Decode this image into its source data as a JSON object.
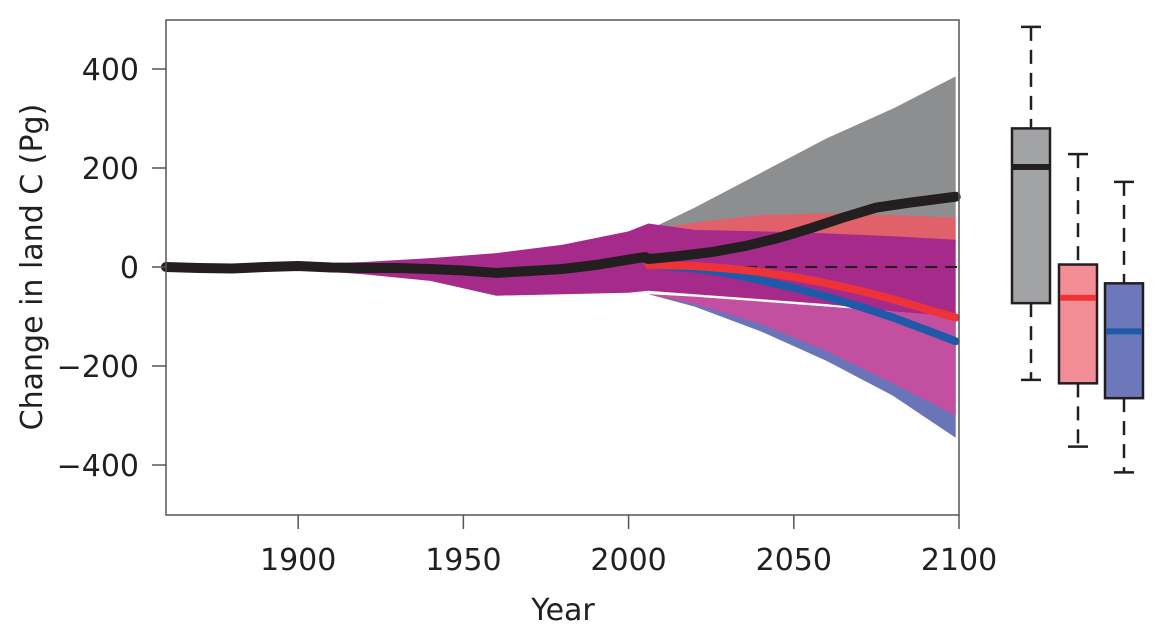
{
  "chart_data": {
    "type": "line",
    "title": "",
    "xlabel": "Year",
    "ylabel": "Change in land C (Pg)",
    "xlim": [
      1860,
      2100
    ],
    "ylim": [
      -500,
      500
    ],
    "xticks": [
      1900,
      1950,
      2000,
      2050,
      2100
    ],
    "yticks": [
      400,
      200,
      0,
      -200,
      -400
    ],
    "ytick_labels": [
      "400",
      "200",
      "0",
      "−200",
      "−400"
    ],
    "zero_line": {
      "y": 0,
      "style": "dashed",
      "color": "#231f20"
    },
    "bands": [
      {
        "name": "grey-range",
        "color": "#8c8e90",
        "x": [
          2006,
          2020,
          2040,
          2060,
          2080,
          2099
        ],
        "upper": [
          75,
          120,
          190,
          260,
          320,
          385
        ],
        "lower": [
          75,
          80,
          85,
          90,
          95,
          100
        ]
      },
      {
        "name": "red-range",
        "color": "#e0616a",
        "x": [
          2006,
          2020,
          2040,
          2060,
          2080,
          2099
        ],
        "upper": [
          75,
          90,
          105,
          108,
          105,
          100
        ],
        "lower": [
          75,
          75,
          70,
          60,
          55,
          50
        ]
      },
      {
        "name": "blue-range",
        "color": "#6a74b8",
        "x": [
          2006,
          2020,
          2040,
          2060,
          2080,
          2099
        ],
        "upper": [
          -55,
          -60,
          -70,
          -80,
          -90,
          -100
        ],
        "lower": [
          -55,
          -80,
          -130,
          -190,
          -260,
          -345
        ]
      },
      {
        "name": "pink-range",
        "color": "#c24fa0",
        "x": [
          2006,
          2020,
          2040,
          2060,
          2080,
          2099
        ],
        "upper": [
          -55,
          -60,
          -70,
          -80,
          -90,
          -100
        ],
        "lower": [
          -55,
          -75,
          -115,
          -170,
          -235,
          -300
        ]
      },
      {
        "name": "historical-purple-range",
        "color": "#a62a8a",
        "x": [
          1860,
          1880,
          1900,
          1920,
          1940,
          1960,
          1980,
          2000,
          2006,
          2020,
          2040,
          2060,
          2080,
          2099
        ],
        "upper": [
          2,
          3,
          5,
          10,
          18,
          28,
          45,
          72,
          88,
          75,
          72,
          68,
          62,
          55
        ],
        "lower": [
          -2,
          -3,
          -5,
          -15,
          -28,
          -58,
          -55,
          -52,
          -48,
          -55,
          -65,
          -75,
          -90,
          -100
        ]
      }
    ],
    "series": [
      {
        "name": "black",
        "color": "#231f20",
        "x": [
          1860,
          1870,
          1880,
          1890,
          1900,
          1910,
          1920,
          1930,
          1940,
          1950,
          1960,
          1970,
          1980,
          1990,
          2000,
          2005,
          2006,
          2015,
          2025,
          2035,
          2045,
          2055,
          2065,
          2075,
          2085,
          2099
        ],
        "y": [
          0,
          -2,
          -3,
          0,
          2,
          -1,
          -2,
          -2,
          -4,
          -7,
          -12,
          -8,
          -4,
          4,
          15,
          20,
          16,
          22,
          30,
          42,
          58,
          78,
          100,
          120,
          130,
          142
        ]
      },
      {
        "name": "red",
        "color": "#ee3338",
        "x": [
          2006,
          2020,
          2030,
          2040,
          2050,
          2060,
          2070,
          2080,
          2090,
          2099
        ],
        "y": [
          4,
          2,
          -3,
          -10,
          -20,
          -33,
          -48,
          -65,
          -85,
          -102
        ]
      },
      {
        "name": "blue",
        "color": "#1f5aa8",
        "x": [
          2006,
          2020,
          2030,
          2040,
          2050,
          2060,
          2070,
          2080,
          2090,
          2099
        ],
        "y": [
          4,
          -3,
          -13,
          -27,
          -42,
          -60,
          -80,
          -102,
          -127,
          -150
        ]
      }
    ],
    "boxplots": [
      {
        "name": "grey-box",
        "fill": "#a2a3a5",
        "median_color": "#231f20",
        "whisker_high": 485,
        "q3": 280,
        "median": 202,
        "q1": -73,
        "whisker_low": -228
      },
      {
        "name": "red-box",
        "fill": "#f38e96",
        "median_color": "#ee3338",
        "whisker_high": 228,
        "q3": 5,
        "median": -62,
        "q1": -235,
        "whisker_low": -363
      },
      {
        "name": "blue-box",
        "fill": "#6c78ba",
        "median_color": "#1f5aa8",
        "whisker_high": 172,
        "q3": -33,
        "median": -130,
        "q1": -265,
        "whisker_low": -415
      }
    ]
  }
}
